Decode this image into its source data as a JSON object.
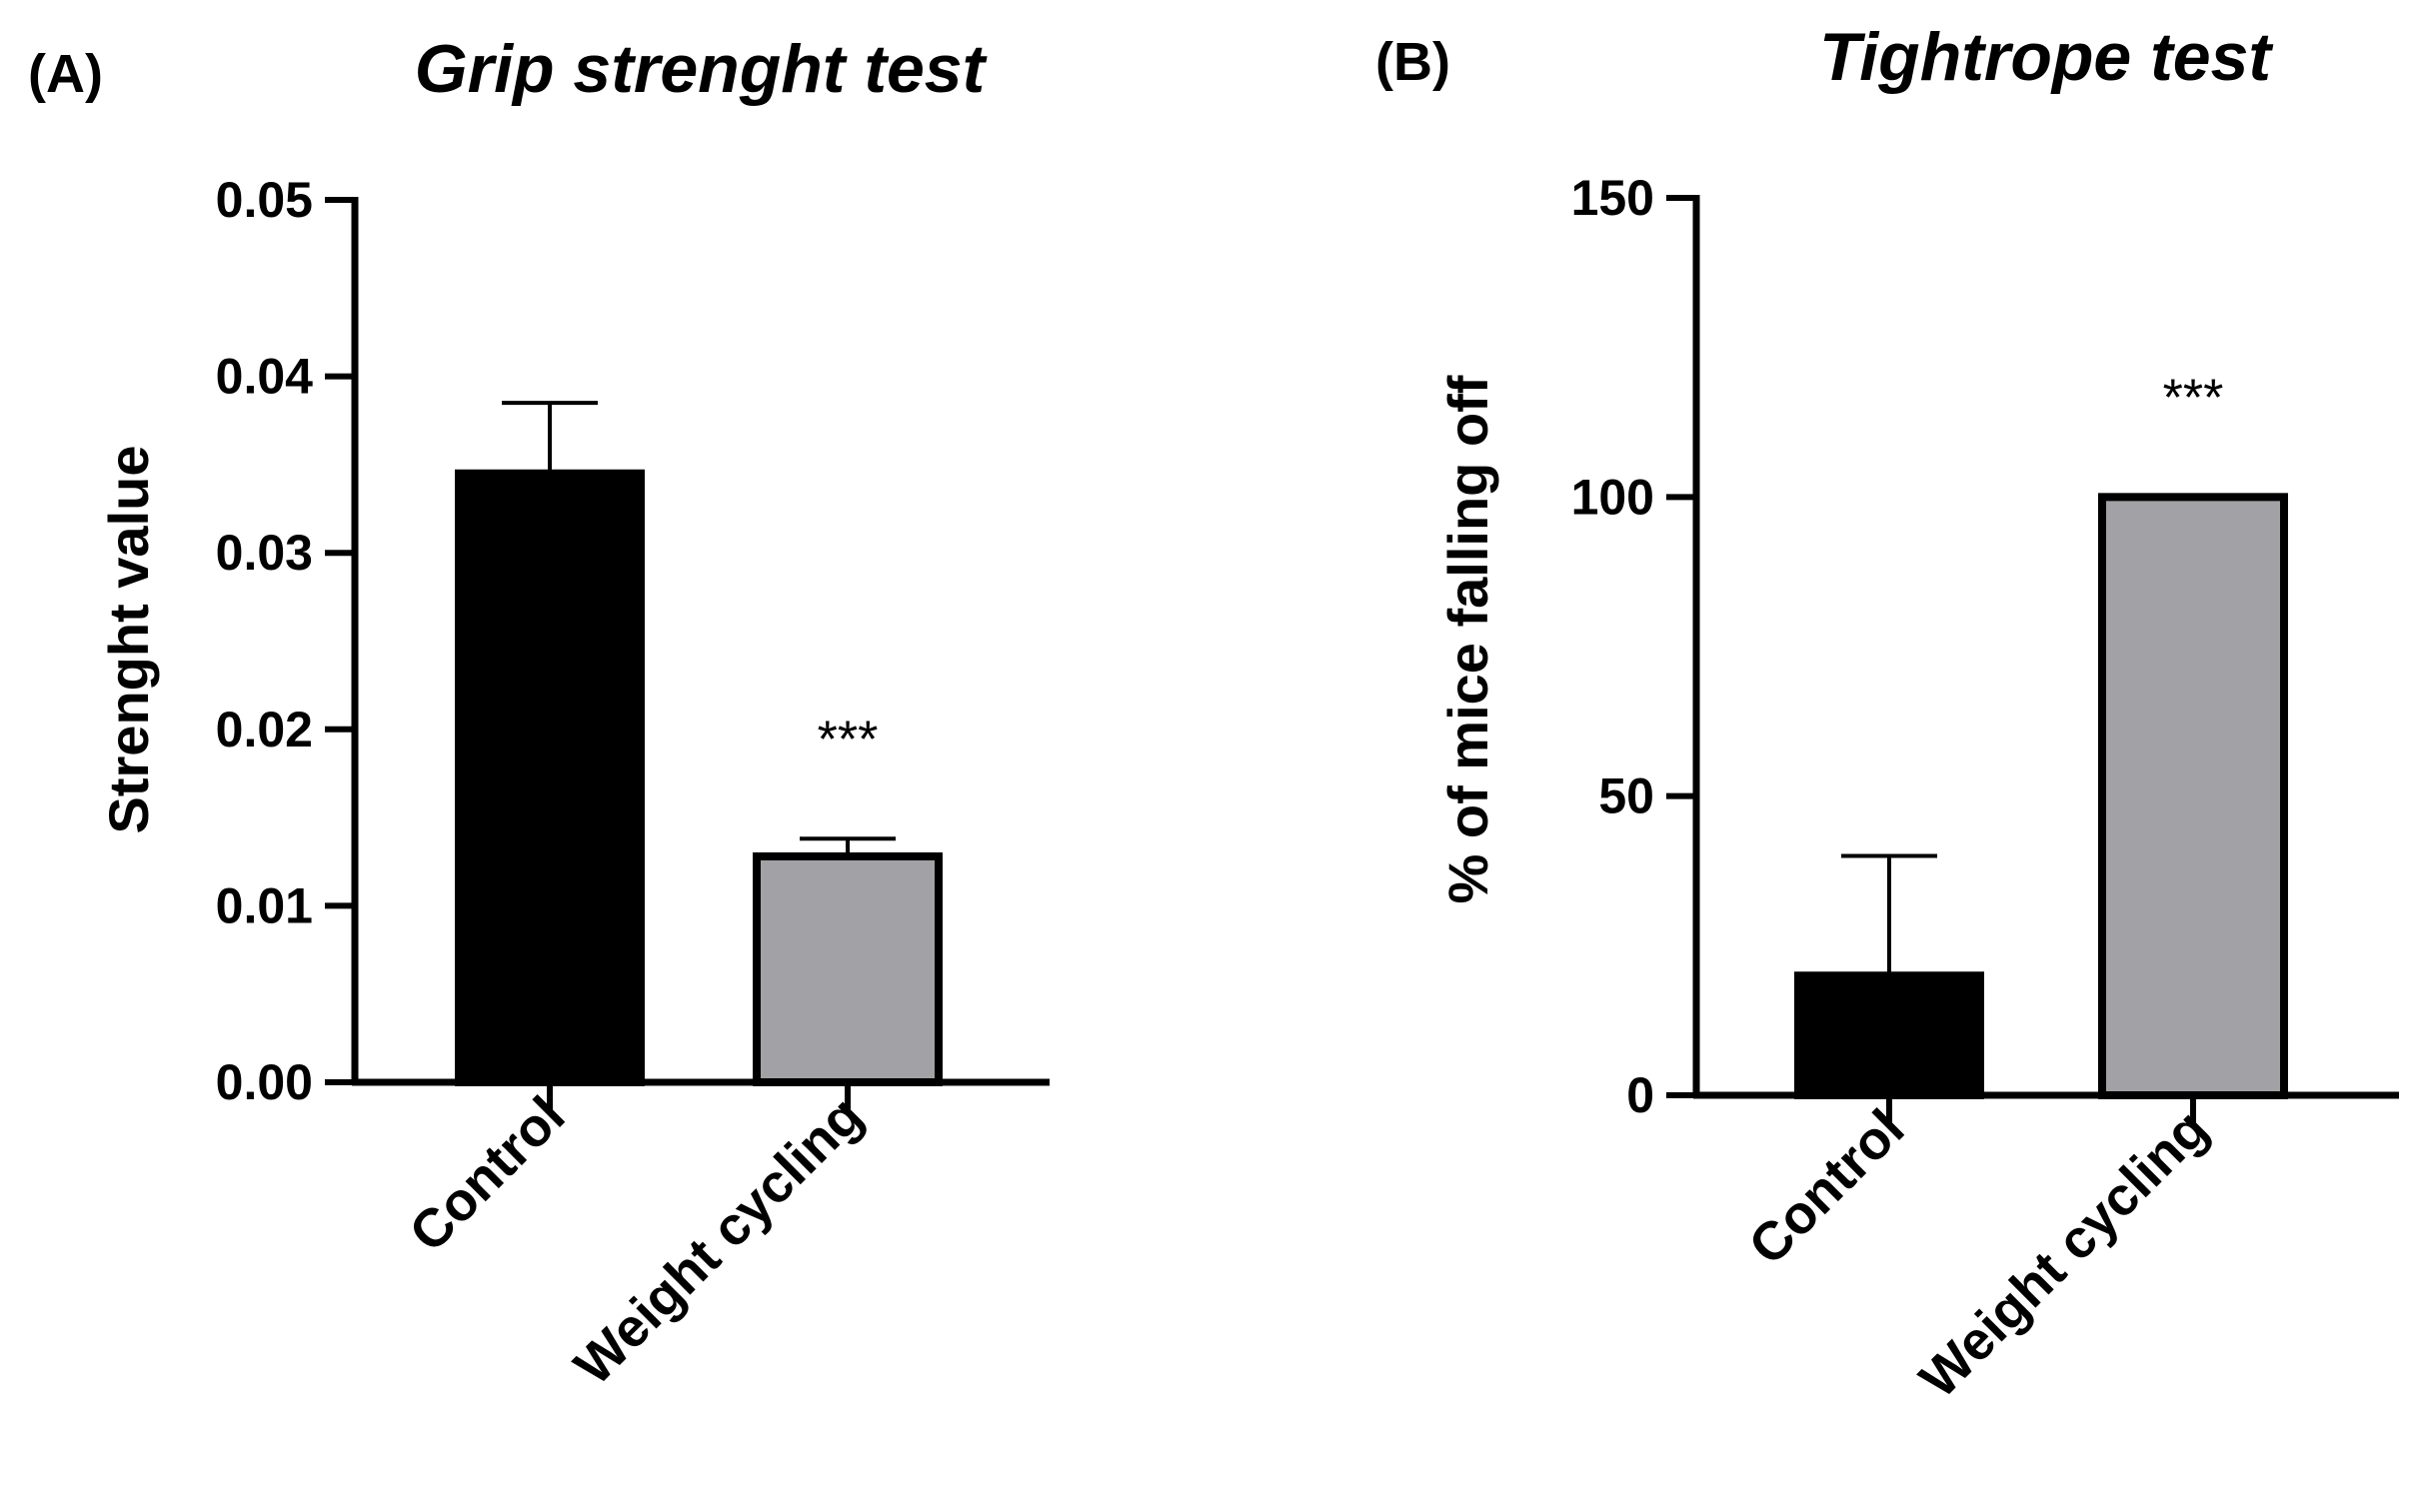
{
  "chart_data": [
    {
      "type": "bar",
      "panel": "(A)",
      "title": "Grip strenght test",
      "xlabel": "",
      "ylabel": "Strenght value",
      "ylim": [
        0,
        0.05
      ],
      "yticks": [
        0.0,
        0.01,
        0.02,
        0.03,
        0.04,
        0.05
      ],
      "ytick_labels": [
        "0.00",
        "0.01",
        "0.02",
        "0.03",
        "0.04",
        "0.05"
      ],
      "categories": [
        "Control",
        "Weight cycling"
      ],
      "values": [
        0.0345,
        0.0128
      ],
      "error_upper": [
        0.0385,
        0.0138
      ],
      "annotations": [
        "",
        "***"
      ],
      "colors": [
        "#000000",
        "#a2a2a6"
      ],
      "grid": false
    },
    {
      "type": "bar",
      "panel": "(B)",
      "title": "Tightrope test",
      "xlabel": "",
      "ylabel": "% of mice falling off",
      "ylim": [
        0,
        150
      ],
      "yticks": [
        0,
        50,
        100,
        150
      ],
      "ytick_labels": [
        "0",
        "50",
        "100",
        "150"
      ],
      "categories": [
        "Control",
        "Weight cycling"
      ],
      "values": [
        20,
        100
      ],
      "error_upper": [
        40,
        null
      ],
      "annotations": [
        "",
        "***"
      ],
      "colors": [
        "#000000",
        "#a2a2a6"
      ],
      "grid": false
    }
  ]
}
